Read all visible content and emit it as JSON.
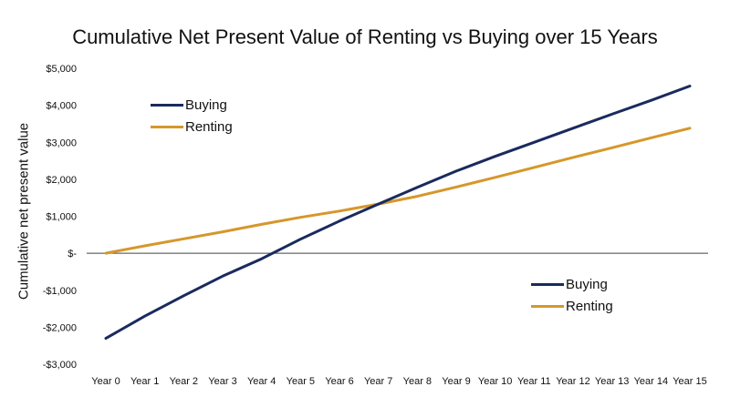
{
  "chart_data": {
    "type": "line",
    "title": "Cumulative Net Present Value of Renting vs Buying over 15 Years",
    "xlabel": "",
    "ylabel": "Cumulative net present value",
    "categories": [
      "Year 0",
      "Year 1",
      "Year 2",
      "Year 3",
      "Year 4",
      "Year 5",
      "Year 6",
      "Year 7",
      "Year 8",
      "Year 9",
      "Year 10",
      "Year 11",
      "Year 12",
      "Year 13",
      "Year 14",
      "Year 15"
    ],
    "ylim": [
      -3000,
      5000
    ],
    "yticks": [
      5000,
      4000,
      3000,
      2000,
      1000,
      0,
      -1000,
      -2000,
      -3000
    ],
    "ytick_labels": [
      "$5,000",
      "$4,000",
      "$3,000",
      "$2,000",
      "$1,000",
      "$-",
      "-$1,000",
      "-$2,000",
      "-$3,000"
    ],
    "grid": false,
    "series": [
      {
        "name": "Buying",
        "color": "#1a2a5e",
        "values": [
          -2300,
          -1700,
          -1150,
          -620,
          -150,
          380,
          870,
          1330,
          1780,
          2220,
          2620,
          3000,
          3380,
          3760,
          4130,
          4520
        ]
      },
      {
        "name": "Renting",
        "color": "#d6972a",
        "values": [
          0,
          200,
          390,
          580,
          780,
          970,
          1140,
          1330,
          1540,
          1790,
          2050,
          2320,
          2590,
          2850,
          3120,
          3380
        ]
      }
    ],
    "legends": [
      {
        "placement": "upper-left",
        "items": [
          "Buying",
          "Renting"
        ]
      },
      {
        "placement": "lower-right",
        "items": [
          "Buying",
          "Renting"
        ]
      }
    ]
  }
}
